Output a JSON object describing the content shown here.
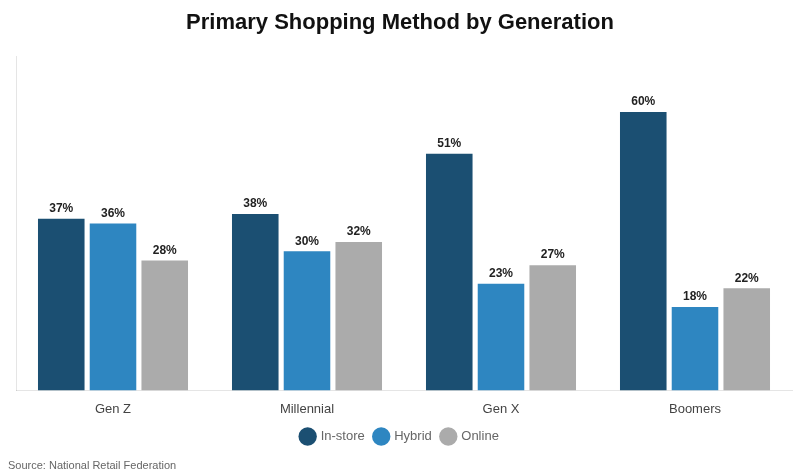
{
  "chart_data": {
    "type": "bar",
    "title": "Primary Shopping Method by Generation",
    "categories": [
      "Gen Z",
      "Millennial",
      "Gen X",
      "Boomers"
    ],
    "series": [
      {
        "name": "In-store",
        "color": "#1B4F72",
        "values": [
          37,
          38,
          51,
          60
        ],
        "value_labels": [
          "37%",
          "38%",
          "51%",
          "60%"
        ]
      },
      {
        "name": "Hybrid",
        "color": "#2E86C1",
        "values": [
          36,
          30,
          23,
          18
        ],
        "value_labels": [
          "36%",
          "30%",
          "23%",
          "18%"
        ]
      },
      {
        "name": "Online",
        "color": "#ABABAB",
        "values": [
          28,
          32,
          27,
          22
        ],
        "value_labels": [
          "28%",
          "32%",
          "27%",
          "22%"
        ]
      }
    ],
    "ylim": [
      0,
      72
    ],
    "grid": false,
    "legend": "bottom",
    "data_labels": true,
    "tick_labels": "x",
    "annotations": [
      "Source: National Retail Federation"
    ]
  }
}
